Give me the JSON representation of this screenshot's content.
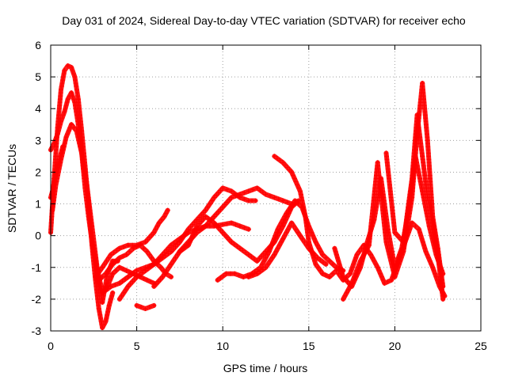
{
  "chart_data": {
    "type": "scatter",
    "title": "Day 031 of 2024, Sidereal Day-to-day VTEC variation (SDTVAR) for receiver echo",
    "xlabel": "GPS time / hours",
    "ylabel": "SDTVAR / TECUs",
    "xlim": [
      0,
      25
    ],
    "ylim": [
      -3,
      6
    ],
    "xticks": [
      0,
      5,
      10,
      15,
      20,
      25
    ],
    "yticks": [
      -3,
      -2,
      -1,
      0,
      1,
      2,
      3,
      4,
      5,
      6
    ],
    "grid": true,
    "marker": "+",
    "color": "#ff0000",
    "series": [
      {
        "x": [
          0.0,
          0.2,
          0.4,
          0.6,
          0.8,
          1.0,
          1.2,
          1.4,
          1.6,
          1.8,
          2.0,
          2.2,
          2.4,
          2.6,
          2.8,
          3.0,
          3.2,
          3.4,
          3.6
        ],
        "y": [
          0.1,
          1.8,
          3.4,
          4.6,
          5.2,
          5.35,
          5.3,
          5.0,
          4.3,
          3.3,
          2.2,
          1.0,
          -0.3,
          -1.4,
          -2.3,
          -2.9,
          -2.7,
          -2.2,
          -1.8
        ]
      },
      {
        "x": [
          0.1,
          0.3,
          0.6,
          0.9,
          1.2,
          1.5,
          1.8,
          2.1,
          2.4,
          2.7,
          3.0,
          3.3,
          3.6,
          4.0,
          4.4,
          4.8,
          5.2,
          5.6,
          6.0
        ],
        "y": [
          0.8,
          1.6,
          2.4,
          3.1,
          3.5,
          3.3,
          2.6,
          1.6,
          0.3,
          -1.0,
          -1.8,
          -1.6,
          -1.2,
          -1.0,
          -1.1,
          -1.2,
          -1.3,
          -1.4,
          -1.5
        ]
      },
      {
        "x": [
          0.0,
          0.2,
          0.4,
          0.6,
          0.8,
          1.0,
          1.2,
          1.4,
          1.6,
          1.8,
          2.0,
          2.2,
          2.4,
          2.6,
          2.8,
          3.0,
          3.3,
          3.6,
          3.9
        ],
        "y": [
          2.7,
          2.9,
          3.2,
          3.6,
          3.9,
          4.3,
          4.5,
          4.2,
          3.5,
          2.6,
          1.5,
          0.6,
          -0.2,
          -0.8,
          -1.5,
          -2.1,
          -1.2,
          -0.8,
          -0.8
        ]
      },
      {
        "x": [
          0.0,
          0.15,
          0.3,
          0.5,
          0.7
        ],
        "y": [
          1.2,
          1.5,
          2.0,
          2.4,
          2.8
        ]
      },
      {
        "x": [
          2.6,
          3.0,
          3.5,
          4.0,
          4.5,
          5.0,
          5.5,
          6.0,
          6.3,
          6.6,
          6.8
        ],
        "y": [
          -1.3,
          -1.0,
          -0.6,
          -0.4,
          -0.3,
          -0.3,
          -0.2,
          0.1,
          0.4,
          0.6,
          0.8
        ]
      },
      {
        "x": [
          2.8,
          3.2,
          3.6,
          4.0,
          4.4,
          4.8,
          5.2,
          5.6,
          6.0,
          6.4,
          6.7,
          7.0
        ],
        "y": [
          -1.4,
          -1.2,
          -0.9,
          -0.7,
          -0.6,
          -0.4,
          -0.3,
          -0.5,
          -0.8,
          -1.0,
          -1.2,
          -1.3
        ]
      },
      {
        "x": [
          3.0,
          3.5,
          4.0,
          4.5,
          5.0,
          5.5,
          6.0,
          6.5,
          7.0,
          7.5,
          8.0,
          8.5,
          9.0,
          9.5,
          10.0,
          10.5,
          11.0,
          11.5,
          11.9
        ],
        "y": [
          -1.8,
          -1.6,
          -1.5,
          -1.3,
          -1.1,
          -1.0,
          -0.9,
          -0.7,
          -0.5,
          -0.2,
          0.2,
          0.5,
          0.8,
          1.2,
          1.5,
          1.4,
          1.2,
          1.1,
          1.1
        ]
      },
      {
        "x": [
          4.0,
          4.5,
          5.0,
          5.5,
          6.0,
          6.5,
          7.0,
          7.5,
          8.0,
          8.5,
          9.0,
          9.5,
          10.0,
          10.5,
          11.0,
          11.5
        ],
        "y": [
          -2.0,
          -1.6,
          -1.3,
          -1.1,
          -0.9,
          -0.6,
          -0.3,
          -0.1,
          0.1,
          0.2,
          0.3,
          0.3,
          0.35,
          0.4,
          0.3,
          0.2
        ]
      },
      {
        "x": [
          5.0,
          5.5,
          6.0
        ],
        "y": [
          -2.2,
          -2.3,
          -2.2
        ]
      },
      {
        "x": [
          6.0,
          6.5,
          7.0,
          7.5,
          8.0,
          8.5,
          9.0,
          9.5,
          10.0,
          10.5,
          11.0,
          11.5,
          12.0,
          12.5,
          13.0,
          13.5,
          14.0,
          14.4
        ],
        "y": [
          -1.6,
          -1.3,
          -0.9,
          -0.5,
          -0.3,
          0.3,
          0.6,
          0.4,
          0.1,
          -0.2,
          -0.4,
          -0.6,
          -0.8,
          -0.5,
          -0.2,
          0.3,
          0.9,
          1.1
        ]
      },
      {
        "x": [
          7.5,
          8.0,
          8.5,
          9.0,
          9.5,
          10.0,
          10.5,
          11.0,
          11.5,
          12.0,
          12.5,
          13.0,
          13.5,
          14.0
        ],
        "y": [
          -0.5,
          -0.2,
          0.1,
          0.3,
          0.6,
          0.9,
          1.2,
          1.3,
          1.4,
          1.5,
          1.3,
          1.2,
          1.1,
          1.0
        ]
      },
      {
        "x": [
          9.7,
          10.2,
          10.7,
          11.2,
          11.7,
          12.2,
          12.7,
          13.2,
          13.7,
          14.2,
          14.6,
          15.0,
          15.4,
          15.8,
          16.2,
          16.6,
          17.0
        ],
        "y": [
          -1.4,
          -1.2,
          -1.2,
          -1.3,
          -1.2,
          -1.0,
          -0.5,
          0.2,
          0.7,
          1.1,
          0.9,
          0.3,
          -0.2,
          -0.6,
          -0.8,
          -1.0,
          -1.1
        ]
      },
      {
        "x": [
          11.5,
          12.0,
          12.5,
          13.0,
          13.5,
          14.0,
          14.5,
          15.0,
          15.5,
          16.0
        ],
        "y": [
          -1.3,
          -1.2,
          -1.0,
          -0.6,
          -0.1,
          0.4,
          0.0,
          -0.4,
          -0.7,
          -0.9
        ]
      },
      {
        "x": [
          13.0,
          13.5,
          14.0,
          14.5,
          14.8,
          15.0,
          15.4,
          15.8,
          16.2,
          16.6,
          17.0,
          17.4,
          17.8,
          18.2,
          18.6,
          19.0,
          19.4,
          19.8,
          20.2,
          20.6,
          21.0,
          21.4,
          21.8,
          22.2,
          22.6,
          22.9
        ],
        "y": [
          2.5,
          2.3,
          2.0,
          1.4,
          0.6,
          -0.2,
          -0.9,
          -1.2,
          -1.3,
          -1.1,
          -1.4,
          -1.2,
          -0.6,
          -0.3,
          -0.6,
          -1.0,
          -1.5,
          -1.4,
          -0.8,
          -0.2,
          0.4,
          0.2,
          -0.5,
          -1.0,
          -1.6,
          -1.9
        ]
      },
      {
        "x": [
          16.5,
          17.0,
          17.5,
          18.0,
          18.4,
          18.8,
          19.2,
          19.6,
          20.0,
          20.4,
          20.8,
          21.2,
          21.6,
          22.0,
          22.4,
          22.8
        ],
        "y": [
          -0.4,
          -1.3,
          -1.6,
          -1.0,
          -0.2,
          0.5,
          1.8,
          0.2,
          -1.0,
          -0.4,
          0.8,
          2.5,
          1.4,
          0.3,
          -0.6,
          -1.2
        ]
      },
      {
        "x": [
          17.0,
          17.5,
          18.0,
          18.5,
          19.0,
          19.5,
          20.0,
          20.5,
          21.0,
          21.3,
          21.6,
          21.9,
          22.2,
          22.5,
          22.8
        ],
        "y": [
          -2.0,
          -1.5,
          -0.8,
          -0.3,
          2.3,
          -0.2,
          -1.3,
          -0.5,
          1.2,
          3.2,
          4.8,
          3.0,
          0.6,
          -0.4,
          -1.6
        ]
      },
      {
        "x": [
          19.5,
          20.0,
          20.5,
          21.0,
          21.3,
          21.6,
          21.9,
          22.2,
          22.5,
          22.8
        ],
        "y": [
          2.6,
          0.1,
          -0.2,
          1.8,
          3.8,
          2.5,
          1.2,
          0.4,
          -0.6,
          -2.0
        ]
      }
    ]
  },
  "page": {
    "background": "#ffffff",
    "grid_color": "#a0a0a0"
  }
}
